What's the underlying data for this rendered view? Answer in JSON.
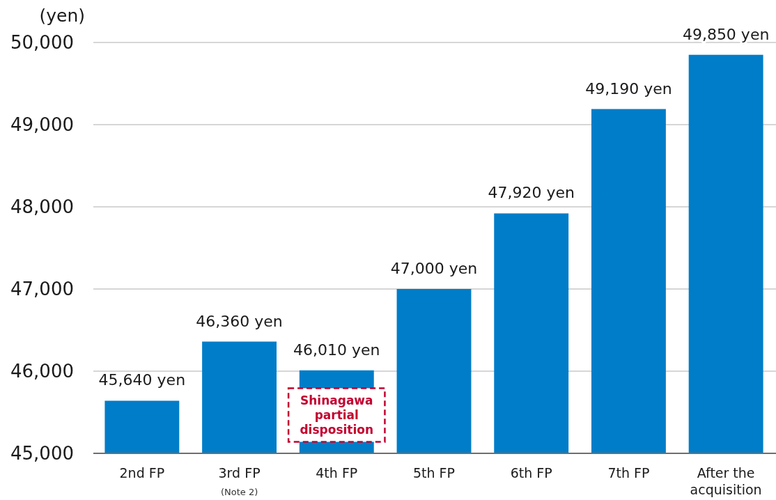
{
  "chart_data": {
    "type": "bar",
    "ylabel": "(yen)",
    "categories": [
      "2nd FP",
      "3rd FP",
      "4th FP",
      "5th FP",
      "6th FP",
      "7th FP",
      "After the acquisition"
    ],
    "values": [
      45640,
      46360,
      46010,
      47000,
      47920,
      49190,
      49850
    ],
    "color": "#007dc8",
    "value_labels": [
      "45,640 yen",
      "46,360 yen",
      "46,010 yen",
      "47,000 yen",
      "47,920 yen",
      "49,190 yen",
      "49,850 yen"
    ],
    "ylim": [
      45000,
      50000
    ],
    "yticks": [
      {
        "value": 45000,
        "label": "45,000"
      },
      {
        "value": 46000,
        "label": "46,000"
      },
      {
        "value": 47000,
        "label": "47,000"
      },
      {
        "value": 48000,
        "label": "48,000"
      },
      {
        "value": 49000,
        "label": "49,000"
      },
      {
        "value": 50000,
        "label": "50,000"
      }
    ],
    "grid": "y",
    "annotations": [
      "Shinagawa partial disposition",
      "(Note 2)"
    ]
  }
}
